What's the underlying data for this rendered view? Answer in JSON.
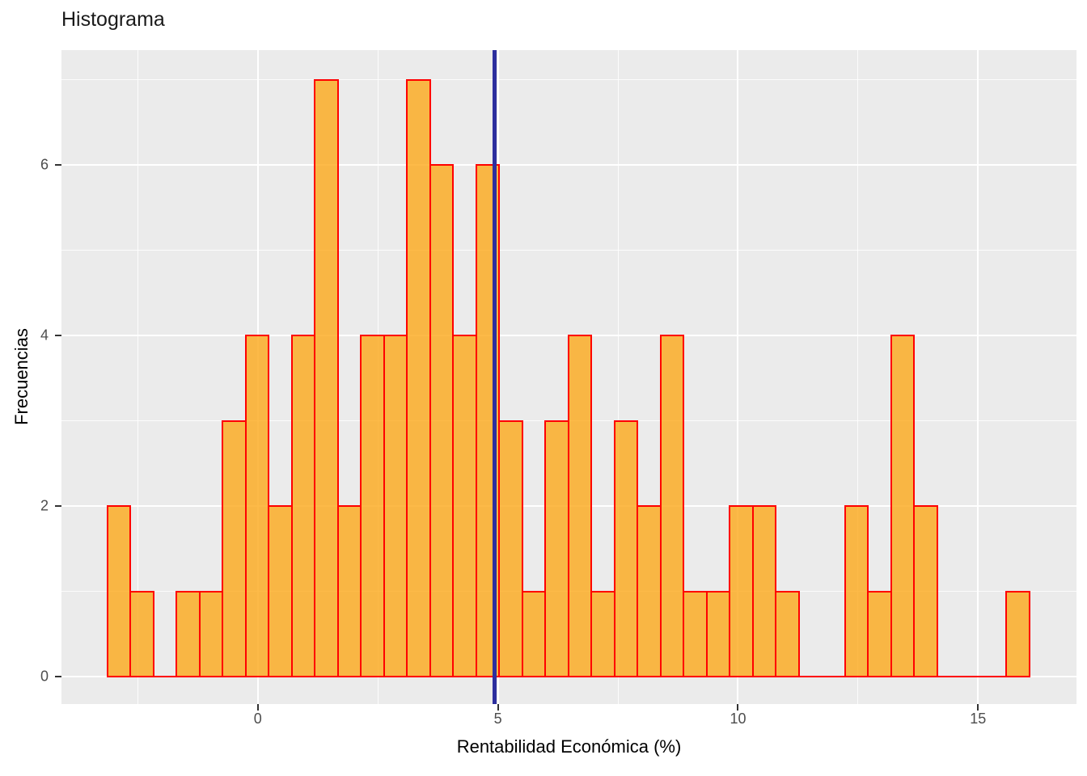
{
  "title": "Histograma",
  "colors": {
    "panel_bg": "#EBEBEB",
    "grid": "#FFFFFF",
    "bar_fill": "#FDA615",
    "bar_fill_alpha": 0.78,
    "bar_border": "#FF0000",
    "vline": "#2D2F9E",
    "tick_mark": "#333333",
    "tick_label": "#4D4D4D",
    "axis_title": "#000000",
    "title": "#1A1A1A"
  },
  "chart_data": {
    "type": "bar",
    "subtype": "histogram",
    "title": "Histograma",
    "xlabel": "Rentabilidad Económica (%)",
    "ylabel": "Frecuencias",
    "xlim": [
      -4.09,
      17.05
    ],
    "ylim": [
      -0.32,
      7.35
    ],
    "x_ticks": [
      0,
      5,
      10,
      15
    ],
    "y_ticks": [
      0,
      2,
      4,
      6
    ],
    "x_minor_ticks": [
      -2.5,
      2.5,
      7.5,
      12.5
    ],
    "y_minor_ticks": [
      1,
      3,
      5,
      7
    ],
    "grid": true,
    "legend": false,
    "bin_start": -3.13,
    "bin_width": 0.48,
    "counts": [
      2,
      1,
      0,
      1,
      1,
      3,
      4,
      2,
      4,
      7,
      2,
      4,
      4,
      7,
      6,
      4,
      6,
      3,
      1,
      3,
      4,
      1,
      3,
      2,
      4,
      1,
      1,
      2,
      2,
      1,
      0,
      0,
      2,
      1,
      4,
      2,
      0,
      0,
      0,
      1
    ],
    "vline_x": 4.93
  }
}
